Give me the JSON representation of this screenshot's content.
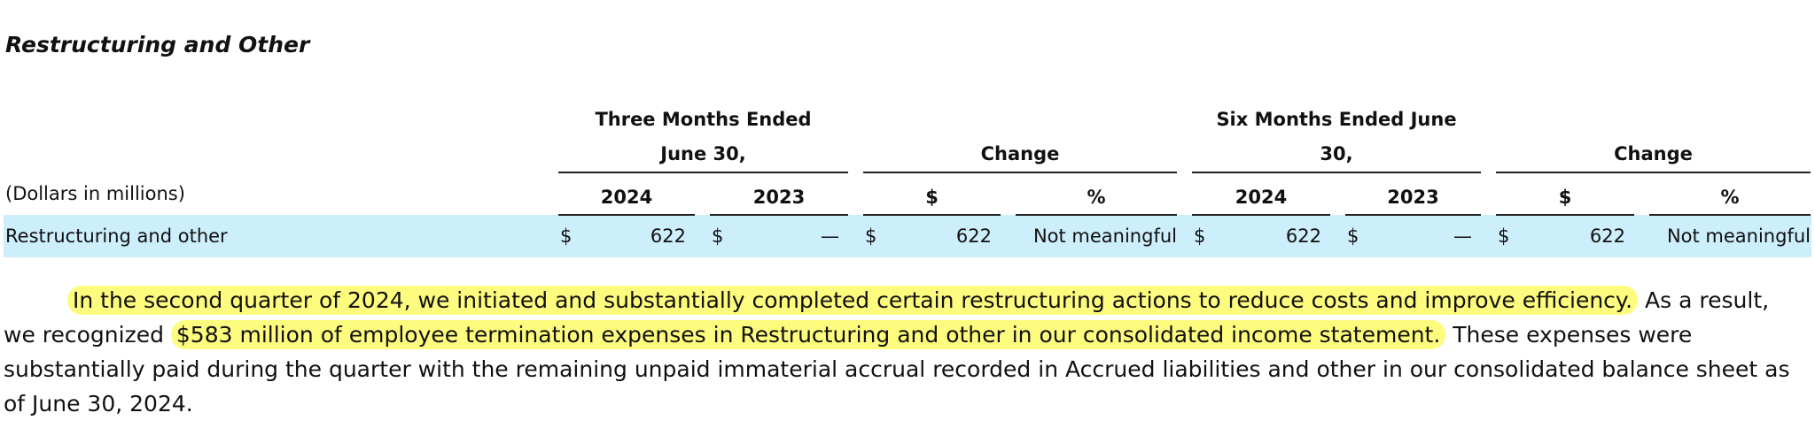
{
  "title": "Restructuring and Other",
  "table": {
    "group_headers": [
      "Three Months Ended June 30,",
      "Change",
      "Six Months Ended June 30,",
      "Change"
    ],
    "unit_label": "(Dollars in millions)",
    "column_headers": [
      "2024",
      "2023",
      "$",
      "%",
      "2024",
      "2023",
      "$",
      "%"
    ],
    "rows": [
      {
        "label": "Restructuring and other",
        "cells": [
          [
            "$",
            622
          ],
          [
            "$",
            "—"
          ],
          [
            "$",
            622
          ],
          [
            "Not meaningful"
          ],
          [
            "$",
            622
          ],
          [
            "$",
            "—"
          ],
          [
            "$",
            622
          ],
          [
            "Not meaningful"
          ]
        ]
      }
    ]
  },
  "paragraph": [
    {
      "text": "In the second quarter of 2024, we initiated and substantially completed certain restructuring actions to reduce costs and improve efficiency.",
      "highlight": true
    },
    {
      "text": " As a result, we recognized ",
      "highlight": false
    },
    {
      "text": "$583 million of employee termination expenses in Restructuring and other in our consolidated income statement.",
      "highlight": true
    },
    {
      "text": " These expenses were substantially paid during the quarter with the remaining unpaid immaterial accrual recorded in Accrued liabilities and other in our consolidated balance sheet as of June 30, 2024.",
      "highlight": false
    }
  ]
}
